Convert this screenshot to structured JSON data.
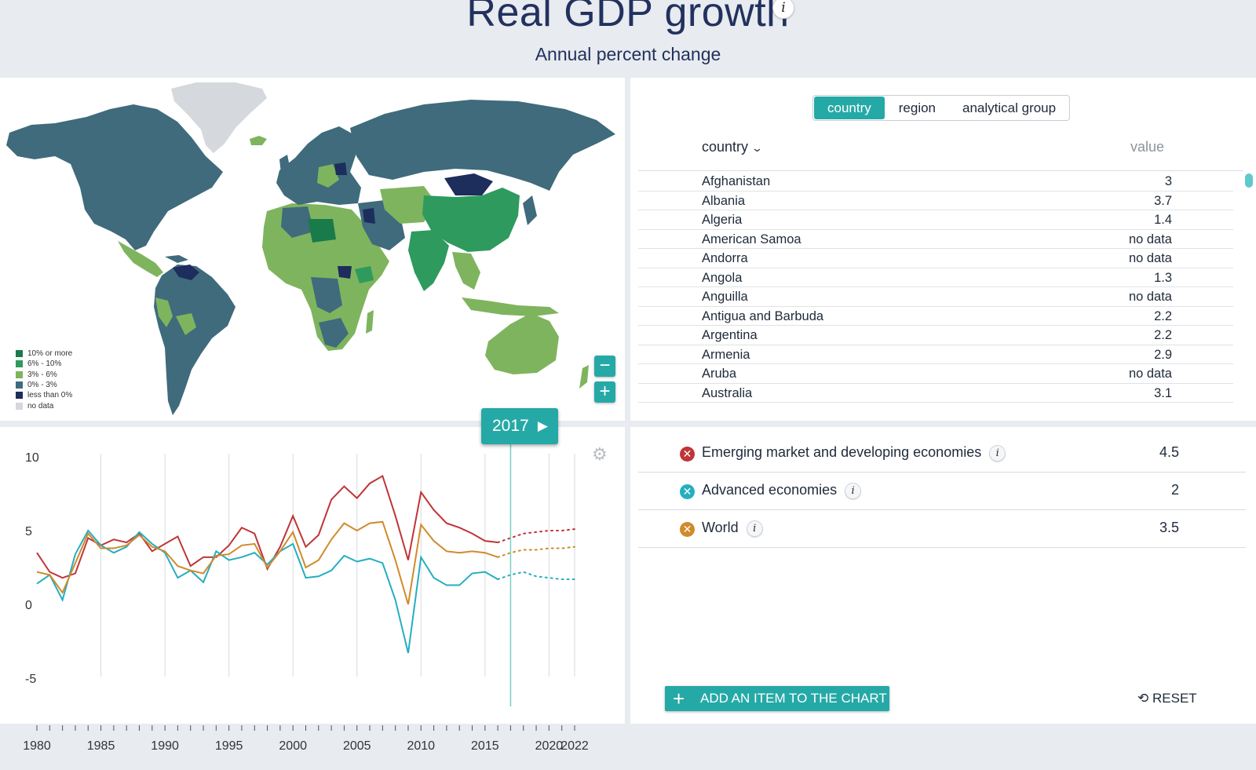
{
  "header": {
    "title": "Real GDP growth",
    "subtitle": "Annual percent change",
    "info_glyph": "i"
  },
  "colors": {
    "accent": "#25a9a6",
    "legend_10_plus": "#1a7b4a",
    "legend_6_10": "#2e9a5e",
    "legend_3_6": "#7fb45e",
    "legend_0_3": "#3f6b7c",
    "legend_neg": "#1d2d5c",
    "legend_nodata": "#d5d8dc",
    "series_emerging": "#bf3538",
    "series_advanced": "#25aec0",
    "series_world": "#d18a2b"
  },
  "map": {
    "legend": [
      {
        "label": "10% or more",
        "color": "#1a7b4a"
      },
      {
        "label": "6% - 10%",
        "color": "#2e9a5e"
      },
      {
        "label": "3% - 6%",
        "color": "#7fb45e"
      },
      {
        "label": "0% - 3%",
        "color": "#3f6b7c"
      },
      {
        "label": "less than 0%",
        "color": "#1d2d5c"
      },
      {
        "label": "no data",
        "color": "#d5d8dc"
      }
    ],
    "zoom_out_label": "−",
    "zoom_in_label": "+"
  },
  "table": {
    "tabs": [
      {
        "label": "country",
        "active": true
      },
      {
        "label": "region",
        "active": false
      },
      {
        "label": "analytical group",
        "active": false
      }
    ],
    "col_country": "country",
    "col_value": "value",
    "rows": [
      {
        "name": "Afghanistan",
        "value": "3"
      },
      {
        "name": "Albania",
        "value": "3.7"
      },
      {
        "name": "Algeria",
        "value": "1.4"
      },
      {
        "name": "American Samoa",
        "value": "no data"
      },
      {
        "name": "Andorra",
        "value": "no data"
      },
      {
        "name": "Angola",
        "value": "1.3"
      },
      {
        "name": "Anguilla",
        "value": "no data"
      },
      {
        "name": "Antigua and Barbuda",
        "value": "2.2"
      },
      {
        "name": "Argentina",
        "value": "2.2"
      },
      {
        "name": "Armenia",
        "value": "2.9"
      },
      {
        "name": "Aruba",
        "value": "no data"
      },
      {
        "name": "Australia",
        "value": "3.1"
      }
    ]
  },
  "chart": {
    "year_label": "2017",
    "play_glyph": "▶"
  },
  "series_panel": {
    "items": [
      {
        "name": "Emerging market and developing economies",
        "value": "4.5",
        "color": "#bf3538"
      },
      {
        "name": "Advanced economies",
        "value": "2",
        "color": "#25aec0"
      },
      {
        "name": "World",
        "value": "3.5",
        "color": "#d18a2b"
      }
    ],
    "add_label": "ADD AN ITEM TO THE CHART",
    "reset_label": "RESET"
  },
  "chart_data": {
    "type": "line",
    "title": "Real GDP growth",
    "xlabel": "",
    "ylabel": "",
    "xlim": [
      1980,
      2022
    ],
    "ylim": [
      -5,
      10
    ],
    "yticks": [
      10,
      5,
      0,
      -5
    ],
    "xtick_labels": [
      1980,
      1985,
      1990,
      1995,
      2000,
      2005,
      2010,
      2015,
      2020,
      2022
    ],
    "selected_year": 2017,
    "forecast_from": 2017,
    "x": [
      1980,
      1981,
      1982,
      1983,
      1984,
      1985,
      1986,
      1987,
      1988,
      1989,
      1990,
      1991,
      1992,
      1993,
      1994,
      1995,
      1996,
      1997,
      1998,
      1999,
      2000,
      2001,
      2002,
      2003,
      2004,
      2005,
      2006,
      2007,
      2008,
      2009,
      2010,
      2011,
      2012,
      2013,
      2014,
      2015,
      2016,
      2017,
      2018,
      2019,
      2020,
      2021,
      2022
    ],
    "series": [
      {
        "name": "Emerging market and developing economies",
        "color": "#bf3538",
        "values": [
          3.5,
          2.2,
          1.8,
          2.1,
          4.5,
          4.0,
          4.4,
          4.2,
          4.8,
          3.6,
          4.1,
          4.6,
          2.6,
          3.2,
          3.2,
          4.0,
          5.2,
          4.8,
          2.4,
          3.9,
          6.0,
          3.9,
          4.7,
          7.1,
          8.0,
          7.2,
          8.2,
          8.7,
          6.0,
          3.0,
          7.6,
          6.4,
          5.5,
          5.2,
          4.8,
          4.3,
          4.2,
          4.5,
          4.8,
          4.9,
          5.0,
          5.0,
          5.1
        ]
      },
      {
        "name": "Advanced economies",
        "color": "#25aec0",
        "values": [
          1.4,
          2.0,
          0.3,
          3.4,
          5.0,
          4.0,
          3.5,
          3.9,
          4.9,
          4.1,
          3.5,
          1.8,
          2.3,
          1.5,
          3.6,
          3.0,
          3.2,
          3.5,
          2.7,
          3.6,
          4.1,
          1.8,
          1.9,
          2.3,
          3.3,
          2.9,
          3.1,
          2.8,
          0.3,
          -3.3,
          3.2,
          1.8,
          1.3,
          1.3,
          2.1,
          2.2,
          1.7,
          2.0,
          2.2,
          1.9,
          1.8,
          1.7,
          1.7
        ]
      },
      {
        "name": "World",
        "color": "#d18a2b",
        "values": [
          2.2,
          2.0,
          0.8,
          2.8,
          4.8,
          3.8,
          3.8,
          4.0,
          4.7,
          3.9,
          3.6,
          2.6,
          2.3,
          2.1,
          3.3,
          3.4,
          4.0,
          4.1,
          2.5,
          3.6,
          4.9,
          2.5,
          3.0,
          4.4,
          5.5,
          5.0,
          5.5,
          5.6,
          3.0,
          0.0,
          5.4,
          4.3,
          3.6,
          3.5,
          3.6,
          3.5,
          3.2,
          3.5,
          3.7,
          3.7,
          3.8,
          3.8,
          3.9
        ]
      }
    ]
  }
}
